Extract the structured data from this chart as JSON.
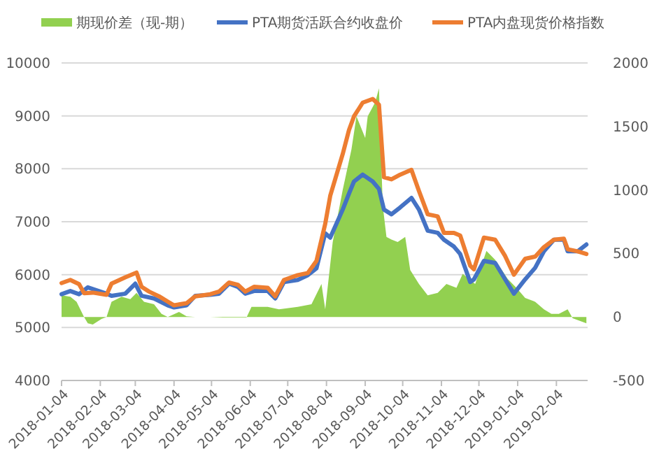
{
  "chart_data": {
    "type": "line",
    "legend": "top",
    "grid": "y",
    "xlim": [
      "2018-01-04",
      "2019-03-01"
    ],
    "xticks": [
      "2018-01-04",
      "2018-02-04",
      "2018-03-04",
      "2018-04-04",
      "2018-05-04",
      "2018-06-04",
      "2018-07-04",
      "2018-08-04",
      "2018-09-04",
      "2018-10-04",
      "2018-11-04",
      "2018-12-04",
      "2019-01-04",
      "2019-02-04"
    ],
    "ylim": [
      4000,
      10000
    ],
    "yticks": [
      4000,
      5000,
      6000,
      7000,
      8000,
      9000,
      10000
    ],
    "y2lim": [
      -500,
      2000
    ],
    "y2ticks": [
      -500,
      0,
      500,
      1000,
      1500,
      2000
    ],
    "series": [
      {
        "name": "期现价差（现-期）",
        "type": "area",
        "axis": "y2",
        "color": "#92d050",
        "x": [
          "2018-01-04",
          "2018-01-11",
          "2018-01-16",
          "2018-01-22",
          "2018-01-25",
          "2018-01-29",
          "2018-02-05",
          "2018-02-09",
          "2018-02-13",
          "2018-02-21",
          "2018-02-28",
          "2018-03-05",
          "2018-03-11",
          "2018-03-19",
          "2018-03-25",
          "2018-03-30",
          "2018-04-08",
          "2018-04-14",
          "2018-04-21",
          "2018-05-03",
          "2018-05-13",
          "2018-06-01",
          "2018-06-05",
          "2018-06-18",
          "2018-06-27",
          "2018-07-12",
          "2018-07-23",
          "2018-07-31",
          "2018-08-03",
          "2018-08-09",
          "2018-08-17",
          "2018-08-24",
          "2018-08-28",
          "2018-09-04",
          "2018-09-06",
          "2018-09-12",
          "2018-09-15",
          "2018-09-18",
          "2018-09-21",
          "2018-09-25",
          "2018-09-30",
          "2018-10-06",
          "2018-10-10",
          "2018-10-17",
          "2018-10-24",
          "2018-11-01",
          "2018-11-08",
          "2018-11-16",
          "2018-11-21",
          "2018-12-01",
          "2018-12-10",
          "2018-12-17",
          "2018-12-27",
          "2019-01-03",
          "2019-01-10",
          "2019-01-18",
          "2019-01-25",
          "2019-01-31",
          "2019-02-06",
          "2019-02-13",
          "2019-02-17",
          "2019-02-28"
        ],
        "values": [
          170,
          160,
          120,
          0,
          -50,
          -60,
          -15,
          0,
          120,
          160,
          140,
          190,
          120,
          100,
          25,
          0,
          40,
          5,
          0,
          0,
          -5,
          -5,
          80,
          80,
          60,
          80,
          100,
          260,
          60,
          590,
          1000,
          1320,
          1580,
          1410,
          1580,
          1690,
          1800,
          880,
          630,
          610,
          590,
          630,
          370,
          260,
          170,
          190,
          260,
          230,
          340,
          260,
          520,
          450,
          300,
          230,
          150,
          120,
          60,
          25,
          25,
          60,
          -10,
          -50
        ]
      },
      {
        "name": "PTA期货活跃合约收盘价",
        "color": "#4472c4",
        "x": [
          "2018-01-04",
          "2018-01-11",
          "2018-01-18",
          "2018-01-25",
          "2018-02-09",
          "2018-02-13",
          "2018-02-24",
          "2018-03-04",
          "2018-03-09",
          "2018-03-19",
          "2018-03-30",
          "2018-04-04",
          "2018-04-14",
          "2018-04-21",
          "2018-05-03",
          "2018-05-10",
          "2018-05-18",
          "2018-05-25",
          "2018-05-31",
          "2018-06-07",
          "2018-06-18",
          "2018-06-24",
          "2018-07-01",
          "2018-07-12",
          "2018-07-20",
          "2018-07-27",
          "2018-08-03",
          "2018-08-07",
          "2018-08-17",
          "2018-08-22",
          "2018-08-26",
          "2018-09-02",
          "2018-09-10",
          "2018-09-15",
          "2018-09-19",
          "2018-09-25",
          "2018-10-02",
          "2018-10-11",
          "2018-10-17",
          "2018-10-24",
          "2018-11-01",
          "2018-11-06",
          "2018-11-14",
          "2018-11-19",
          "2018-11-27",
          "2018-11-30",
          "2018-12-08",
          "2018-12-17",
          "2018-12-25",
          "2019-01-01",
          "2019-01-10",
          "2019-01-18",
          "2019-01-25",
          "2019-02-02",
          "2019-02-10",
          "2019-02-13",
          "2019-02-21",
          "2019-02-28"
        ],
        "values": [
          5630,
          5690,
          5630,
          5760,
          5640,
          5600,
          5640,
          5830,
          5600,
          5550,
          5420,
          5380,
          5420,
          5600,
          5620,
          5640,
          5830,
          5770,
          5640,
          5690,
          5690,
          5550,
          5860,
          5900,
          5990,
          6120,
          6780,
          6700,
          7230,
          7530,
          7760,
          7890,
          7760,
          7620,
          7230,
          7140,
          7270,
          7450,
          7230,
          6830,
          6790,
          6660,
          6530,
          6390,
          5860,
          5910,
          6260,
          6220,
          5910,
          5640,
          5910,
          6130,
          6440,
          6660,
          6660,
          6440,
          6440,
          6570
        ]
      },
      {
        "name": "PTA内盘现货价格指数",
        "color": "#ed7d31",
        "x": [
          "2018-01-04",
          "2018-01-11",
          "2018-01-18",
          "2018-01-22",
          "2018-01-29",
          "2018-02-09",
          "2018-02-13",
          "2018-02-24",
          "2018-03-05",
          "2018-03-09",
          "2018-03-15",
          "2018-03-23",
          "2018-03-30",
          "2018-04-04",
          "2018-04-14",
          "2018-04-21",
          "2018-05-03",
          "2018-05-10",
          "2018-05-18",
          "2018-05-25",
          "2018-05-31",
          "2018-06-07",
          "2018-06-18",
          "2018-06-24",
          "2018-07-01",
          "2018-07-12",
          "2018-07-20",
          "2018-07-27",
          "2018-08-03",
          "2018-08-07",
          "2018-08-17",
          "2018-08-22",
          "2018-08-26",
          "2018-09-02",
          "2018-09-10",
          "2018-09-15",
          "2018-09-19",
          "2018-09-25",
          "2018-10-02",
          "2018-10-11",
          "2018-10-17",
          "2018-10-24",
          "2018-11-01",
          "2018-11-06",
          "2018-11-14",
          "2018-11-19",
          "2018-11-27",
          "2018-11-30",
          "2018-12-08",
          "2018-12-17",
          "2018-12-25",
          "2019-01-01",
          "2019-01-10",
          "2019-01-18",
          "2019-01-25",
          "2019-02-02",
          "2019-02-10",
          "2019-02-13",
          "2019-02-21",
          "2019-02-28"
        ],
        "values": [
          5840,
          5900,
          5820,
          5650,
          5660,
          5620,
          5830,
          5950,
          6040,
          5770,
          5680,
          5590,
          5490,
          5420,
          5460,
          5590,
          5630,
          5680,
          5850,
          5810,
          5680,
          5770,
          5750,
          5590,
          5900,
          5990,
          6030,
          6260,
          6960,
          7490,
          8280,
          8730,
          8990,
          9250,
          9320,
          9210,
          7840,
          7800,
          7890,
          7980,
          7580,
          7140,
          7100,
          6790,
          6790,
          6740,
          6170,
          6100,
          6700,
          6660,
          6350,
          6000,
          6300,
          6340,
          6520,
          6660,
          6680,
          6480,
          6440,
          6390
        ]
      }
    ]
  }
}
